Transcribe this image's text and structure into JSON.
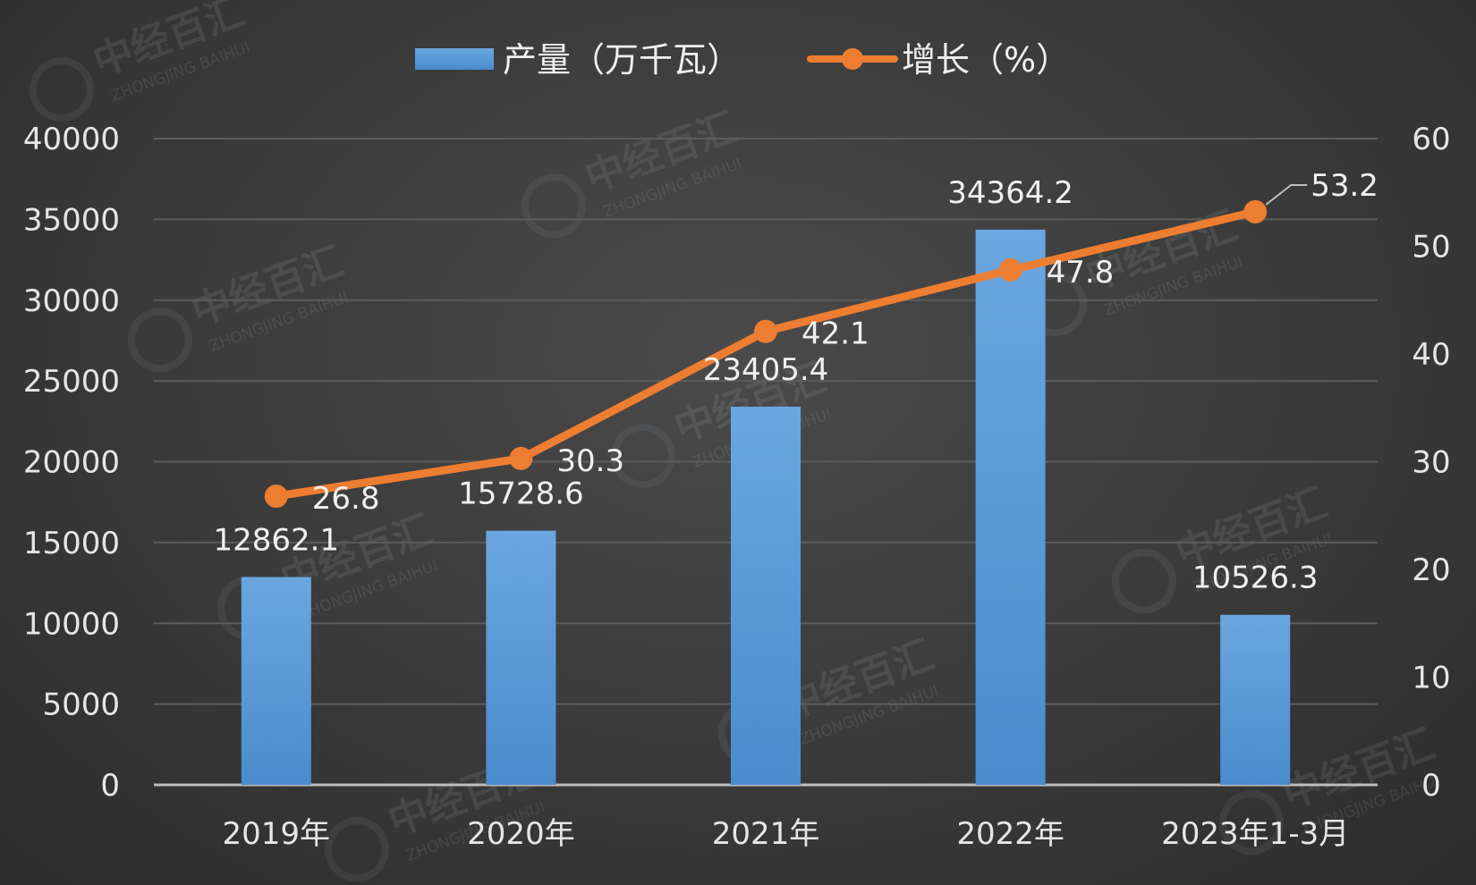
{
  "chart_data": {
    "type": "bar",
    "categories": [
      "2019年",
      "2020年",
      "2021年",
      "2022年",
      "2023年1-3月"
    ],
    "series": [
      {
        "name": "产量（万千瓦）",
        "type": "bar",
        "axis": "left",
        "values": [
          12862.1,
          15728.6,
          23405.4,
          34364.2,
          10526.3
        ],
        "color": "#5b9bd5"
      },
      {
        "name": "增长（%）",
        "type": "line",
        "axis": "right",
        "values": [
          26.8,
          30.3,
          42.1,
          47.8,
          53.2
        ],
        "color": "#ed7d31"
      }
    ],
    "y_left": {
      "ylim": [
        0,
        40000
      ],
      "ticks": [
        0,
        5000,
        10000,
        15000,
        20000,
        25000,
        30000,
        35000,
        40000
      ]
    },
    "y_right": {
      "ylim": [
        0,
        60
      ],
      "ticks": [
        0,
        10,
        20,
        30,
        40,
        50,
        60
      ]
    },
    "title": "",
    "xlabel": "",
    "ylabel": "",
    "grid": true,
    "legend_position": "top-center"
  },
  "colors": {
    "bar": "#5b9bd5",
    "line": "#ed7d31",
    "grid": "#5c5c5c",
    "text": "#e6e6e6"
  },
  "watermark": {
    "text_cn": "中经百汇",
    "text_en": "ZHONGJING BAIHUI"
  }
}
